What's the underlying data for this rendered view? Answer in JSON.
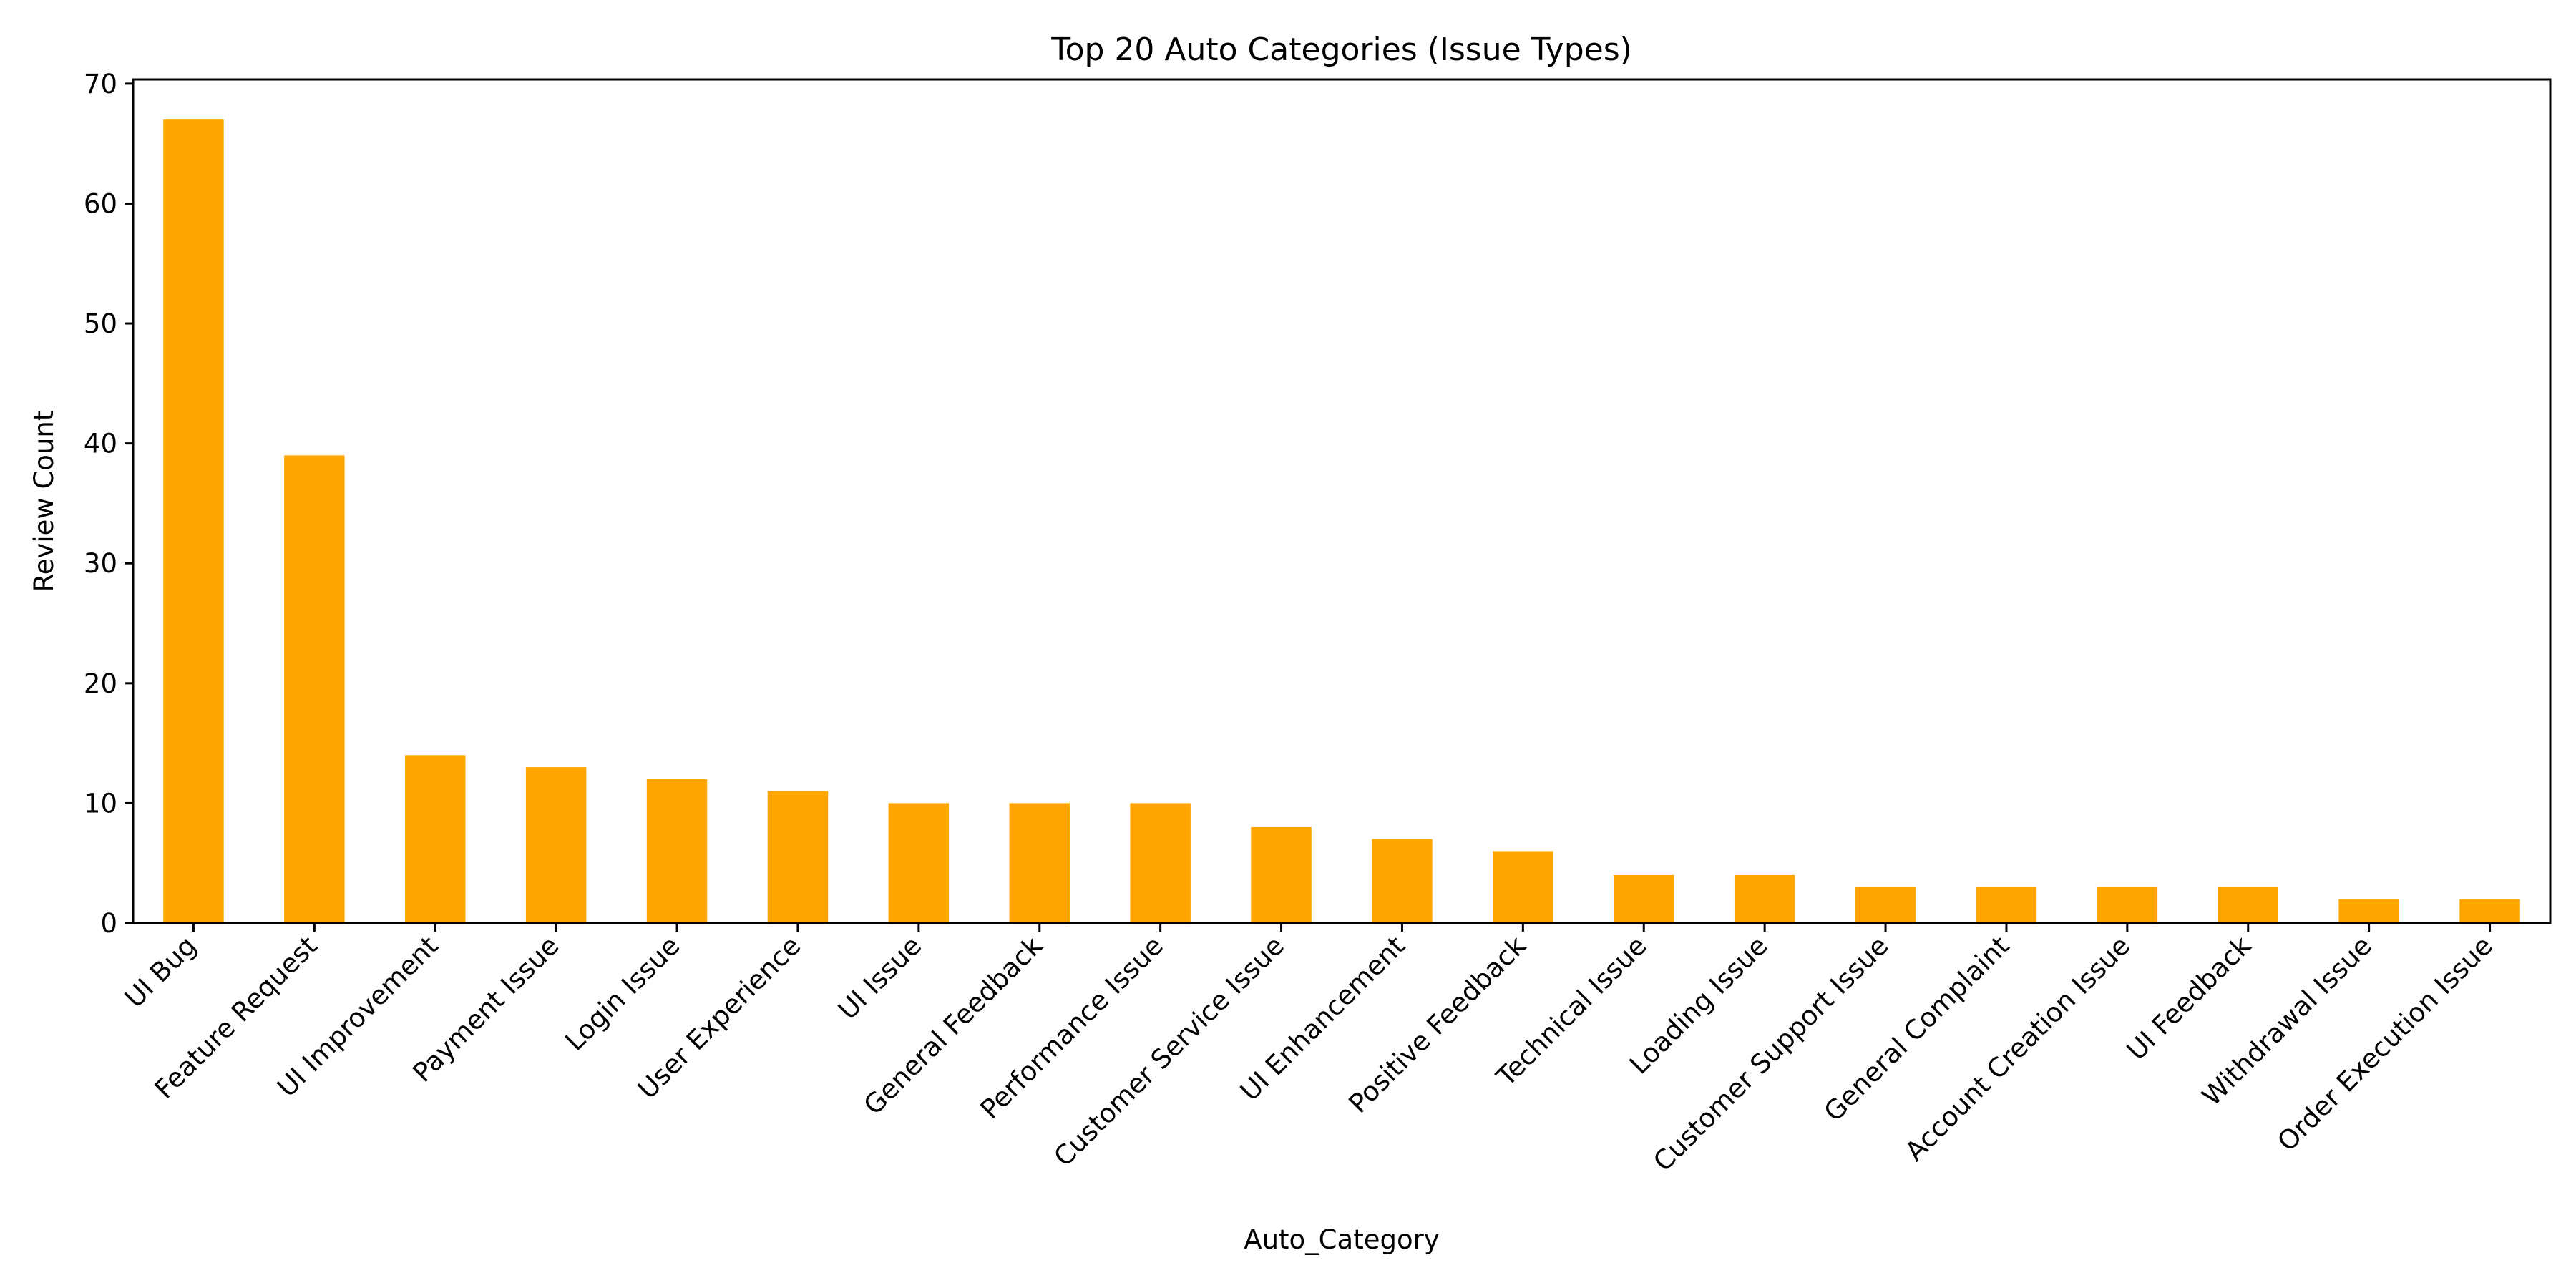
{
  "chart_data": {
    "type": "bar",
    "title": "Top 20 Auto Categories (Issue Types)",
    "xlabel": "Auto_Category",
    "ylabel": "Review Count",
    "categories": [
      "UI Bug",
      "Feature Request",
      "UI Improvement",
      "Payment Issue",
      "Login Issue",
      "User Experience",
      "UI Issue",
      "General Feedback",
      "Performance Issue",
      "Customer Service Issue",
      "UI Enhancement",
      "Positive Feedback",
      "Technical Issue",
      "Loading Issue",
      "Customer Support Issue",
      "General Complaint",
      "Account Creation Issue",
      "UI Feedback",
      "Withdrawal Issue",
      "Order Execution Issue"
    ],
    "values": [
      67,
      39,
      14,
      13,
      12,
      11,
      10,
      10,
      10,
      8,
      7,
      6,
      4,
      4,
      3,
      3,
      3,
      3,
      2,
      2
    ],
    "ylim": [
      0,
      70.35
    ],
    "yticks": [
      0,
      10,
      20,
      30,
      40,
      50,
      60,
      70
    ],
    "bar_color": "#FFA500",
    "grid": false,
    "legend": false
  }
}
